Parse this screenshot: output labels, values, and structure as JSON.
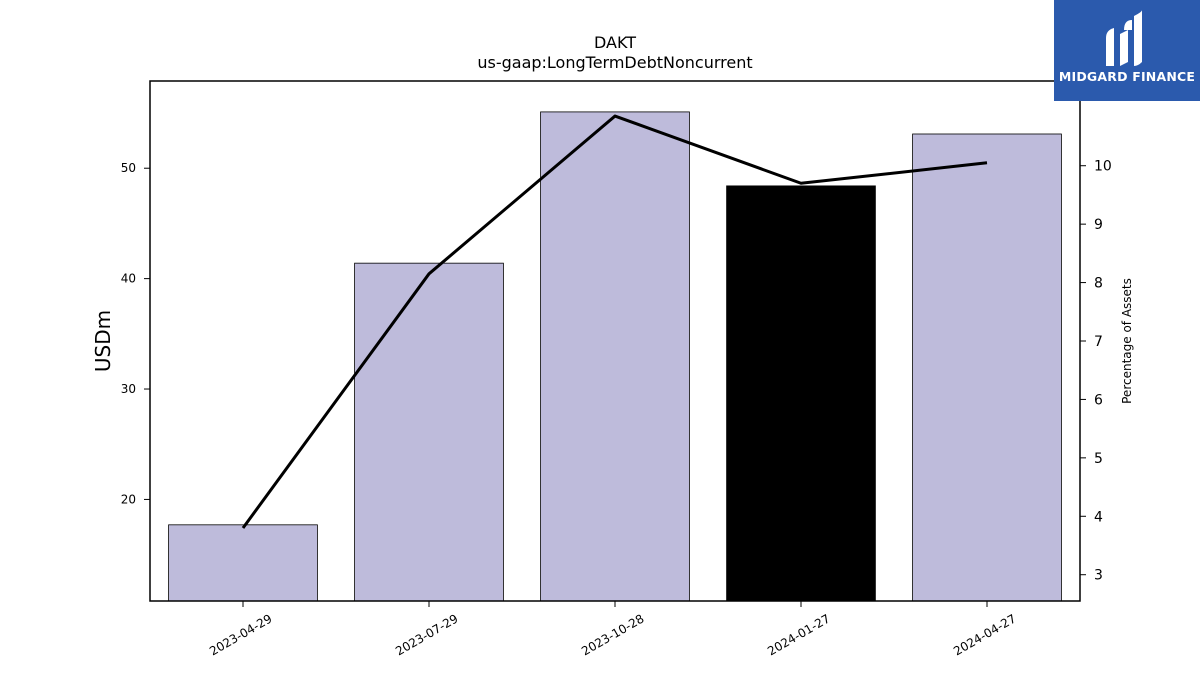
{
  "chart_data": {
    "type": "bar",
    "title": "DAKT",
    "subtitle": "us-gaap:LongTermDebtNoncurrent",
    "ylabel": "USDm",
    "y2label": "Percentage of Assets",
    "categories": [
      "2023-04-29",
      "2023-07-29",
      "2023-10-28",
      "2024-01-27",
      "2024-04-27"
    ],
    "series": [
      {
        "type": "bar",
        "values": [
          17.7,
          41.4,
          55.1,
          48.4,
          53.1
        ],
        "highlight_index": 3
      },
      {
        "type": "line",
        "axis": "right",
        "values": [
          3.8,
          8.15,
          10.85,
          9.7,
          10.05
        ]
      }
    ],
    "ylim": [
      10.8,
      57.9
    ],
    "y2lim": [
      2.55,
      11.45
    ],
    "yticks": [
      20,
      30,
      40,
      50
    ],
    "y2ticks": [
      3,
      4,
      5,
      6,
      7,
      8,
      9,
      10
    ],
    "colors": {
      "bar": "#bebbdb",
      "highlight": "#000000",
      "line": "#000000"
    },
    "grid": false
  },
  "logo": {
    "text": "MIDGARD FINANCE",
    "color": "#2b5aad"
  }
}
